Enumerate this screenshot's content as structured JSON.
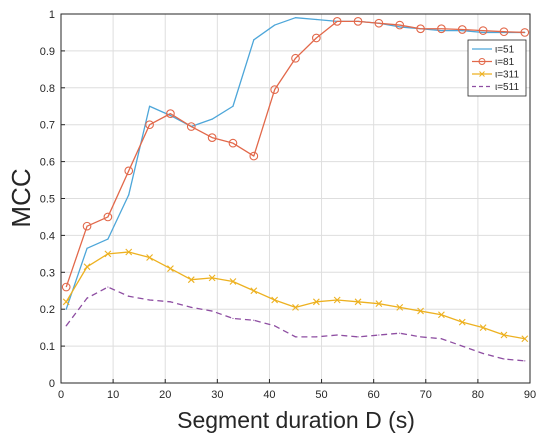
{
  "chart_data": {
    "type": "line",
    "xlabel": "Segment duration D (s)",
    "ylabel": "MCC",
    "xlim": [
      0,
      90
    ],
    "ylim": [
      0,
      1
    ],
    "xticks": [
      0,
      10,
      20,
      30,
      40,
      50,
      60,
      70,
      80,
      90
    ],
    "yticks": [
      0,
      0.1,
      0.2,
      0.3,
      0.4,
      0.5,
      0.6,
      0.7,
      0.8,
      0.9,
      1
    ],
    "grid": true,
    "legend_position": "top-right",
    "series": [
      {
        "name": "ι=51",
        "color": "#4DA6D9",
        "line": "solid",
        "marker": "none",
        "x": [
          1,
          5,
          9,
          13,
          17,
          21,
          25,
          29,
          33,
          37,
          41,
          45,
          49,
          53,
          57,
          61,
          65,
          69,
          73,
          77,
          81,
          85,
          89
        ],
        "y": [
          0.2,
          0.365,
          0.39,
          0.51,
          0.75,
          0.725,
          0.695,
          0.715,
          0.75,
          0.93,
          0.97,
          0.99,
          0.985,
          0.98,
          0.98,
          0.975,
          0.965,
          0.96,
          0.955,
          0.955,
          0.95,
          0.95,
          0.95
        ]
      },
      {
        "name": "ι=81",
        "color": "#E2684A",
        "line": "solid",
        "marker": "circle",
        "x": [
          1,
          5,
          9,
          13,
          17,
          21,
          25,
          29,
          33,
          37,
          41,
          45,
          49,
          53,
          57,
          61,
          65,
          69,
          73,
          77,
          81,
          85,
          89
        ],
        "y": [
          0.26,
          0.425,
          0.45,
          0.575,
          0.7,
          0.73,
          0.695,
          0.665,
          0.65,
          0.615,
          0.795,
          0.88,
          0.935,
          0.98,
          0.98,
          0.975,
          0.97,
          0.96,
          0.96,
          0.958,
          0.955,
          0.952,
          0.95
        ]
      },
      {
        "name": "ι=311",
        "color": "#EDB120",
        "line": "solid",
        "marker": "x",
        "x": [
          1,
          5,
          9,
          13,
          17,
          21,
          25,
          29,
          33,
          37,
          41,
          45,
          49,
          53,
          57,
          61,
          65,
          69,
          73,
          77,
          81,
          85,
          89
        ],
        "y": [
          0.22,
          0.315,
          0.35,
          0.355,
          0.34,
          0.31,
          0.28,
          0.285,
          0.275,
          0.25,
          0.225,
          0.205,
          0.22,
          0.225,
          0.22,
          0.215,
          0.205,
          0.195,
          0.185,
          0.165,
          0.15,
          0.13,
          0.12
        ]
      },
      {
        "name": "ι=511",
        "color": "#8E4EA2",
        "line": "dashed",
        "marker": "none",
        "x": [
          1,
          5,
          9,
          13,
          17,
          21,
          25,
          29,
          33,
          37,
          41,
          45,
          49,
          53,
          57,
          61,
          65,
          69,
          73,
          77,
          81,
          85,
          89
        ],
        "y": [
          0.155,
          0.23,
          0.26,
          0.235,
          0.225,
          0.22,
          0.205,
          0.195,
          0.175,
          0.17,
          0.155,
          0.125,
          0.125,
          0.13,
          0.125,
          0.13,
          0.135,
          0.125,
          0.12,
          0.1,
          0.08,
          0.065,
          0.06
        ]
      }
    ]
  }
}
